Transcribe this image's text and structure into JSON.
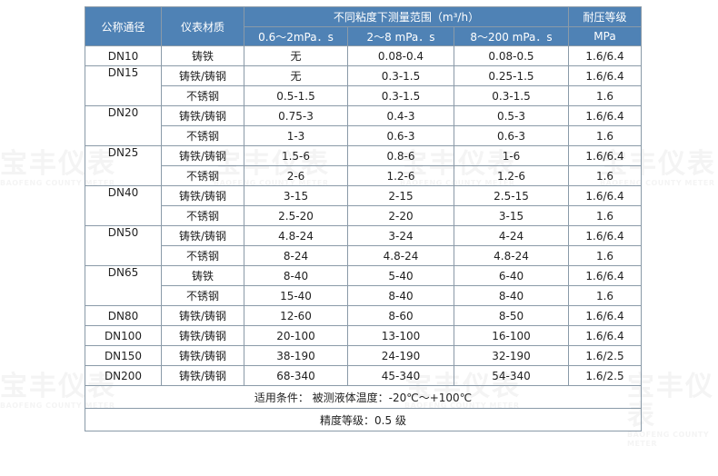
{
  "header": {
    "nominal_diameter": "公称通径",
    "material": "仪表材质",
    "flow_range_title": "不同粘度下测量范围（m³/h）",
    "pressure_title": "耐压等级",
    "viscosity_cols": [
      "0.6～2mPa．s",
      "2～8 mPa．s",
      "8～200 mPa．s"
    ],
    "pressure_unit": "MPa"
  },
  "rows": [
    {
      "dn": "DN10",
      "material": "铸铁",
      "r1": "无",
      "r2": "0.08-0.4",
      "r3": "0.08-0.5",
      "pressure": "1.6/6.4"
    },
    {
      "dn": "DN15",
      "material": "铸铁/铸钢",
      "r1": "无",
      "r2": "0.3-1.5",
      "r3": "0.25-1.5",
      "pressure": "1.6/6.4"
    },
    {
      "dn": "",
      "material": "不锈钢",
      "r1": "0.5-1.5",
      "r2": "0.3-1.5",
      "r3": "0.3-1.5",
      "pressure": "1.6"
    },
    {
      "dn": "DN20",
      "material": "铸铁/铸钢",
      "r1": "0.75-3",
      "r2": "0.4-3",
      "r3": "0.5-3",
      "pressure": "1.6/6.4"
    },
    {
      "dn": "",
      "material": "不锈钢",
      "r1": "1-3",
      "r2": "0.6-3",
      "r3": "0.6-3",
      "pressure": "1.6"
    },
    {
      "dn": "DN25",
      "material": "铸铁/铸钢",
      "r1": "1.5-6",
      "r2": "0.8-6",
      "r3": "1-6",
      "pressure": "1.6/6.4"
    },
    {
      "dn": "",
      "material": "不锈钢",
      "r1": "2-6",
      "r2": "1.2-6",
      "r3": "1.2-6",
      "pressure": "1.6"
    },
    {
      "dn": "DN40",
      "material": "铸铁/铸钢",
      "r1": "3-15",
      "r2": "2-15",
      "r3": "2.5-15",
      "pressure": "1.6/6.4"
    },
    {
      "dn": "",
      "material": "不锈钢",
      "r1": "2.5-20",
      "r2": "2-20",
      "r3": "3-15",
      "pressure": "1.6"
    },
    {
      "dn": "DN50",
      "material": "铸铁/铸钢",
      "r1": "4.8-24",
      "r2": "3-24",
      "r3": "4-24",
      "pressure": "1.6/6.4"
    },
    {
      "dn": "",
      "material": "不锈钢",
      "r1": "8-24",
      "r2": "4.8-24",
      "r3": "4.8-24",
      "pressure": "1.6"
    },
    {
      "dn": "DN65",
      "material": "铸铁",
      "r1": "8-40",
      "r2": "5-40",
      "r3": "6-40",
      "pressure": "1.6/6.4"
    },
    {
      "dn": "",
      "material": "不锈钢",
      "r1": "15-40",
      "r2": "8-40",
      "r3": "8-40",
      "pressure": "1.6"
    },
    {
      "dn": "DN80",
      "material": "铸铁/铸钢",
      "r1": "12-60",
      "r2": "8-60",
      "r3": "8-50",
      "pressure": "1.6/6.4"
    },
    {
      "dn": "DN100",
      "material": "铸铁/铸钢",
      "r1": "20-100",
      "r2": "13-100",
      "r3": "16-100",
      "pressure": "1.6/6.4"
    },
    {
      "dn": "DN150",
      "material": "铸铁/铸钢",
      "r1": "38-190",
      "r2": "24-190",
      "r3": "32-190",
      "pressure": "1.6/2.5"
    },
    {
      "dn": "DN200",
      "material": "铸铁/铸钢",
      "r1": "68-340",
      "r2": "45-340",
      "r3": "54-340",
      "pressure": "1.6/2.5"
    }
  ],
  "notes": {
    "conditions": "适用条件： 被测液体温度：-20℃～+100℃",
    "accuracy": "精度等级：0.5 级"
  },
  "watermark": {
    "brand": "宝丰仪表",
    "subtitle": "BAOFENG COUNTY METER"
  }
}
